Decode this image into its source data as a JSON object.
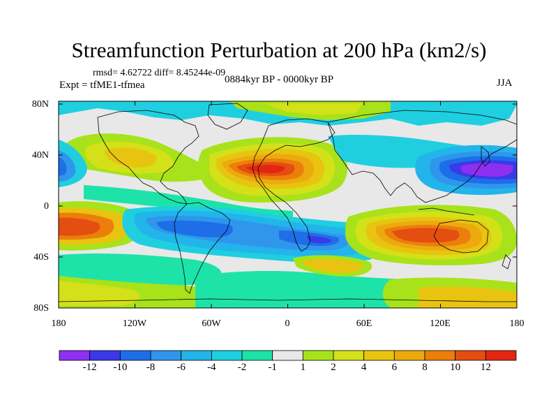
{
  "title": "Streamfunction Perturbation at 200 hPa (km2/s)",
  "stats_line": "rmsd= 4.62722 diff= 8.45244e-09",
  "experiment": "Expt = tfME1-tfmea",
  "period": "0884kyr BP - 0000kyr BP",
  "season": "JJA",
  "lat_ticks": [
    "80N",
    "40N",
    "0",
    "40S",
    "80S"
  ],
  "lon_ticks": [
    "180",
    "120W",
    "60W",
    "0",
    "60E",
    "120E",
    "180"
  ],
  "colorbar": {
    "labels": [
      "-12",
      "-10",
      "-8",
      "-6",
      "-4",
      "-2",
      "-1",
      "1",
      "2",
      "4",
      "6",
      "8",
      "10",
      "12"
    ],
    "colors": [
      "#8f2ff0",
      "#3a3ae8",
      "#1e6ee8",
      "#2f96ec",
      "#22b4ea",
      "#1fcfe0",
      "#1ee3a8",
      "#e8e8e8",
      "#a8e21a",
      "#d4e018",
      "#e8c410",
      "#ecaa0e",
      "#ec7e0c",
      "#e44e10",
      "#e22612"
    ]
  },
  "map_data": {
    "type": "contour-fill",
    "lat_range": [
      -90,
      90
    ],
    "lon_range": [
      -180,
      180
    ],
    "features": [
      {
        "id": "anticyclone-north-africa",
        "lon": 0,
        "lat": 28,
        "value": 12
      },
      {
        "id": "cyclone-west-pacific",
        "lon": 160,
        "lat": 28,
        "value": -12
      },
      {
        "id": "cyclone-northeast-pacific",
        "lon": -178,
        "lat": 30,
        "value": -10
      },
      {
        "id": "anticyclone-south-pacific",
        "lon": -170,
        "lat": -18,
        "value": 10
      },
      {
        "id": "anticyclone-australia",
        "lon": 130,
        "lat": -25,
        "value": 10
      },
      {
        "id": "cyclone-south-america",
        "lon": -65,
        "lat": -20,
        "value": -8
      },
      {
        "id": "cyclone-south-atlantic",
        "lon": 20,
        "lat": -25,
        "value": -10
      },
      {
        "id": "anticyclone-north-america",
        "lon": -100,
        "lat": 40,
        "value": 6
      },
      {
        "id": "anticyclone-south-indian",
        "lon": 30,
        "lat": -50,
        "value": 4
      }
    ]
  }
}
